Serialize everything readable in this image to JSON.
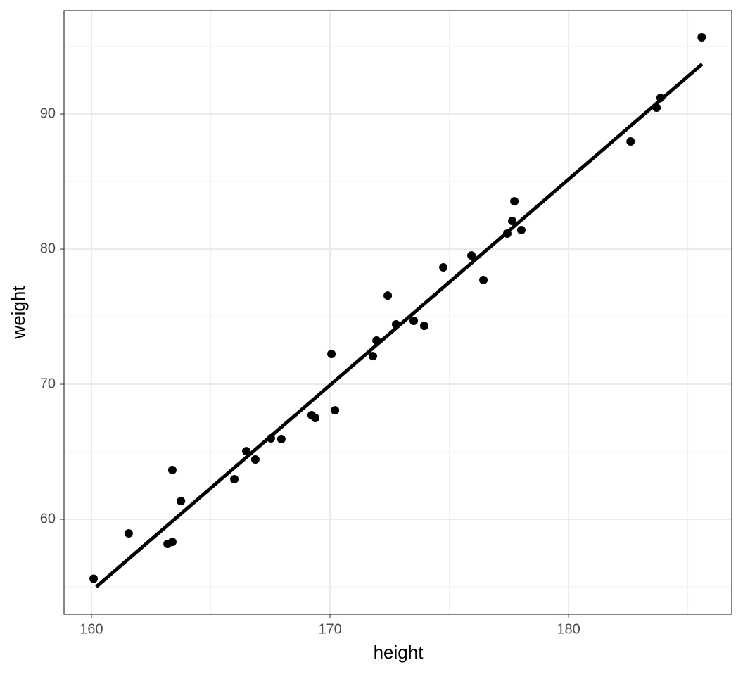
{
  "chart_data": {
    "type": "scatter",
    "x_label": "height",
    "y_label": "weight",
    "x": [
      160.09,
      161.56,
      163.19,
      163.39,
      163.39,
      163.75,
      165.99,
      166.49,
      166.87,
      167.52,
      167.96,
      169.23,
      169.38,
      170.06,
      170.21,
      171.8,
      171.95,
      172.42,
      172.77,
      173.51,
      173.95,
      174.75,
      175.93,
      176.43,
      177.43,
      177.64,
      177.73,
      178.02,
      182.6,
      183.69,
      183.86,
      185.58
    ],
    "y": [
      55.6,
      58.96,
      58.18,
      58.33,
      63.65,
      61.35,
      62.97,
      65.05,
      64.43,
      65.99,
      65.94,
      67.71,
      67.5,
      72.24,
      68.07,
      72.08,
      73.23,
      76.56,
      74.43,
      74.69,
      74.32,
      78.65,
      79.53,
      77.71,
      81.15,
      82.08,
      83.54,
      81.41,
      87.97,
      90.47,
      91.2,
      95.68
    ],
    "color": "#000000",
    "fit": {
      "x": [
        160.2,
        185.6
      ],
      "y": [
        55.0,
        93.7
      ],
      "color": "#000000"
    },
    "xlim": [
      158.85,
      186.84
    ],
    "ylim": [
      52.97,
      97.66
    ],
    "xticks": [
      160,
      170,
      180
    ],
    "yticks": [
      60,
      70,
      80,
      90
    ],
    "x_minor_grid": [
      165,
      175,
      185
    ],
    "y_minor_grid": [
      55,
      65,
      75,
      85,
      95
    ],
    "grid": true
  }
}
